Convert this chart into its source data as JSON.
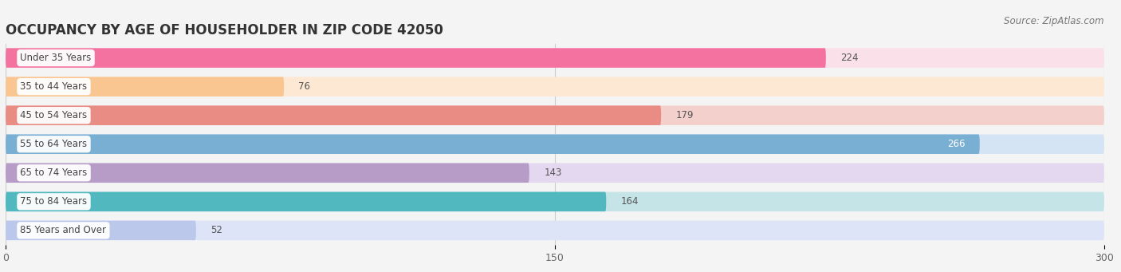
{
  "title": "OCCUPANCY BY AGE OF HOUSEHOLDER IN ZIP CODE 42050",
  "source": "Source: ZipAtlas.com",
  "categories": [
    "Under 35 Years",
    "35 to 44 Years",
    "45 to 54 Years",
    "55 to 64 Years",
    "65 to 74 Years",
    "75 to 84 Years",
    "85 Years and Over"
  ],
  "values": [
    224,
    76,
    179,
    266,
    143,
    164,
    52
  ],
  "bar_colors": [
    "#F472A0",
    "#F9C590",
    "#E88C84",
    "#7AAFD4",
    "#B89CC8",
    "#52B8C0",
    "#BBC8EC"
  ],
  "bar_bg_colors": [
    "#FAE0E8",
    "#FDE8D4",
    "#F4D0CC",
    "#D4E4F4",
    "#E4D8F0",
    "#C4E4E8",
    "#DDE4F8"
  ],
  "xlim": [
    0,
    300
  ],
  "xticks": [
    0,
    150,
    300
  ],
  "bg_color": "#F4F4F4",
  "title_fontsize": 12,
  "source_fontsize": 8.5,
  "bar_label_fontsize": 8.5,
  "category_fontsize": 8.5,
  "value_inside_threshold": 240
}
